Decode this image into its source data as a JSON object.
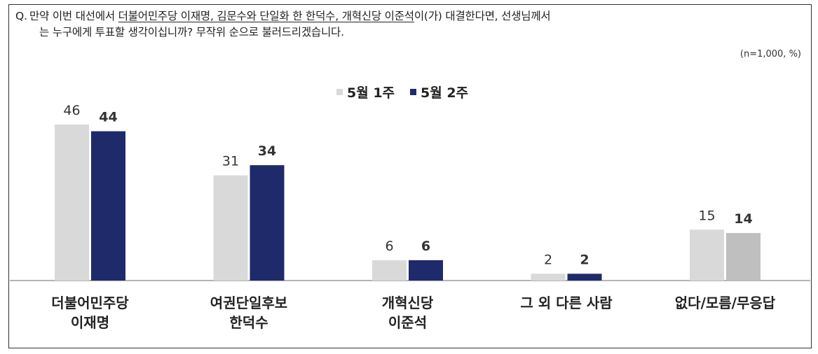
{
  "question": {
    "prefix": "Q.",
    "text_before": "만약 이번 대선에서 ",
    "text_underlined": "더불어민주당 이재명, 김문수와 단일화 한 한덕수, 개혁신당 이준석",
    "text_after": "이(가) 대결한다면, 선생님께서",
    "line2": "는 누구에게 투표할 생각이십니까? 무작위 순으로 불러드리겠습니다."
  },
  "sample_note": "(n=1,000, %)",
  "legend": [
    {
      "label": "5월 1주",
      "color": "#d9d9d9"
    },
    {
      "label": "5월 2주",
      "color": "#1f2a6b"
    }
  ],
  "chart_data": {
    "type": "bar",
    "categories": [
      "더불어민주당\n이재명",
      "여권단일후보\n한덕수",
      "개혁신당\n이준석",
      "그 외 다른 사람",
      "없다/모름/무응답"
    ],
    "series": [
      {
        "name": "5월 1주",
        "values": [
          46,
          31,
          6,
          2,
          15
        ],
        "color": "#d9d9d9"
      },
      {
        "name": "5월 2주",
        "values": [
          44,
          34,
          6,
          2,
          14
        ],
        "color": "#1f2a6b",
        "alt_color": "#bfbfbf"
      }
    ]
  }
}
